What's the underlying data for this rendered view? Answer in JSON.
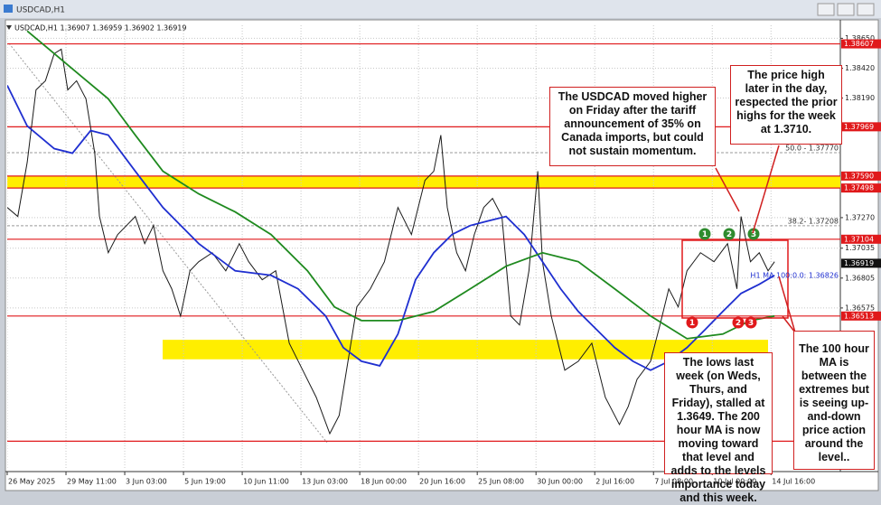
{
  "window": {
    "title": "USDCAD,H1"
  },
  "chart_data": {
    "type": "line",
    "header": "USDCAD,H1  1.36907 1.36959 1.36902 1.36919",
    "xlim": [
      0,
      14.18
    ],
    "xticks": [
      {
        "value": 0,
        "label": "26 May 2025"
      },
      {
        "value": 1,
        "label": "29 May 11:00"
      },
      {
        "value": 2,
        "label": "3 Jun 03:00"
      },
      {
        "value": 3,
        "label": "5 Jun 19:00"
      },
      {
        "value": 4,
        "label": "10 Jun 11:00"
      },
      {
        "value": 5,
        "label": "13 Jun 03:00"
      },
      {
        "value": 6,
        "label": "18 Jun 00:00"
      },
      {
        "value": 7,
        "label": "20 Jun 16:00"
      },
      {
        "value": 8,
        "label": "25 Jun 08:00"
      },
      {
        "value": 9,
        "label": "30 Jun 00:00"
      },
      {
        "value": 10,
        "label": "2 Jul 16:00"
      },
      {
        "value": 11,
        "label": "7 Jul 08:00"
      },
      {
        "value": 12,
        "label": "10 Jul 00:00"
      },
      {
        "value": 13,
        "label": "14 Jul 16:00"
      }
    ],
    "ylim": [
      1.3533,
      1.3875
    ],
    "yticks": [
      {
        "value": 1.3865,
        "label": "1.38650"
      },
      {
        "value": 1.3842,
        "label": "1.38420"
      },
      {
        "value": 1.3819,
        "label": "1.38190"
      },
      {
        "value": 1.3727,
        "label": "1.37270"
      },
      {
        "value": 1.37035,
        "label": "1.37035"
      },
      {
        "value": 1.36805,
        "label": "1.36805"
      },
      {
        "value": 1.36575,
        "label": "1.36575"
      }
    ],
    "grid": true,
    "series": [
      {
        "color": "#1a1a1a",
        "x": [
          0,
          0.18,
          0.34,
          0.49,
          0.65,
          0.8,
          0.92,
          1.03,
          1.18,
          1.34,
          1.49,
          1.57,
          1.72,
          1.88,
          2.03,
          2.18,
          2.34,
          2.49,
          2.65,
          2.8,
          2.95,
          3.11,
          3.26,
          3.49,
          3.72,
          3.95,
          4.11,
          4.34,
          4.57,
          4.8,
          5.03,
          5.26,
          5.49,
          5.65,
          5.8,
          5.95,
          6.18,
          6.42,
          6.65,
          6.88,
          7.11,
          7.26,
          7.38,
          7.49,
          7.65,
          7.8,
          7.95,
          8.11,
          8.26,
          8.42,
          8.57,
          8.72,
          8.88,
          9.03,
          9.11,
          9.26,
          9.49,
          9.72,
          9.95,
          10.18,
          10.42,
          10.57,
          10.72,
          10.95,
          11.11,
          11.26,
          11.42,
          11.57,
          11.8,
          12.03,
          12.26,
          12.42,
          12.49,
          12.65,
          12.8,
          12.95,
          13.06
        ],
        "values": [
          1.37348,
          1.37279,
          1.37696,
          1.38253,
          1.38323,
          1.38532,
          1.38566,
          1.38253,
          1.38323,
          1.38184,
          1.37766,
          1.37279,
          1.37,
          1.3714,
          1.37209,
          1.37279,
          1.3707,
          1.37209,
          1.36861,
          1.36722,
          1.36513,
          1.36861,
          1.36931,
          1.37,
          1.36861,
          1.3707,
          1.36931,
          1.36792,
          1.36861,
          1.36304,
          1.36096,
          1.35887,
          1.35608,
          1.35748,
          1.36165,
          1.36583,
          1.36722,
          1.36931,
          1.37348,
          1.3714,
          1.37557,
          1.37627,
          1.37905,
          1.37348,
          1.37,
          1.36861,
          1.3714,
          1.37348,
          1.37418,
          1.37279,
          1.36513,
          1.36444,
          1.36861,
          1.37627,
          1.36931,
          1.36513,
          1.36096,
          1.36165,
          1.36304,
          1.35887,
          1.35678,
          1.35817,
          1.36026,
          1.36165,
          1.36444,
          1.36722,
          1.36583,
          1.36861,
          1.37,
          1.36931,
          1.3707,
          1.36722,
          1.37279,
          1.36931,
          1.37,
          1.36861,
          1.36931
        ]
      },
      {
        "color": "#1f2fd0",
        "x": [
          0,
          0.34,
          0.8,
          1.11,
          1.42,
          1.72,
          2.18,
          2.65,
          3.26,
          3.88,
          4.49,
          4.95,
          5.42,
          5.72,
          6.03,
          6.34,
          6.65,
          6.95,
          7.26,
          7.57,
          7.88,
          8.18,
          8.49,
          8.8,
          9.11,
          9.42,
          9.72,
          10.03,
          10.34,
          10.65,
          10.95,
          11.26,
          11.57,
          11.88,
          12.18,
          12.49,
          12.8,
          13.06
        ],
        "values": [
          1.38288,
          1.37975,
          1.37801,
          1.37766,
          1.3794,
          1.37905,
          1.37627,
          1.37348,
          1.3707,
          1.36861,
          1.36826,
          1.36722,
          1.36513,
          1.3627,
          1.36165,
          1.3613,
          1.36374,
          1.36792,
          1.37,
          1.3714,
          1.37209,
          1.37244,
          1.37279,
          1.3714,
          1.36931,
          1.36722,
          1.36548,
          1.36409,
          1.3627,
          1.36165,
          1.36096,
          1.36165,
          1.3627,
          1.36409,
          1.36548,
          1.36687,
          1.36757,
          1.36826
        ]
      },
      {
        "color": "#1f8a1f",
        "x": [
          0.34,
          0.8,
          1.26,
          1.72,
          2.18,
          2.65,
          3.26,
          3.88,
          4.49,
          5.11,
          5.57,
          6.03,
          6.65,
          7.26,
          7.88,
          8.49,
          9.11,
          9.72,
          10.34,
          10.95,
          11.57,
          12.18,
          12.65,
          13.06
        ],
        "values": [
          1.38706,
          1.38532,
          1.38358,
          1.38184,
          1.37905,
          1.37627,
          1.37453,
          1.37314,
          1.3714,
          1.36861,
          1.36583,
          1.36478,
          1.36478,
          1.36548,
          1.36722,
          1.36896,
          1.37,
          1.36931,
          1.36722,
          1.36513,
          1.36339,
          1.36374,
          1.36478,
          1.36513
        ]
      }
    ],
    "levels": [
      {
        "value": 1.38607,
        "label": "1.38607"
      },
      {
        "value": 1.37969,
        "label": "1.37969"
      },
      {
        "value": 1.3759,
        "label": "1.37590"
      },
      {
        "value": 1.37498,
        "label": "1.37498"
      },
      {
        "value": 1.37104,
        "label": "1.37104"
      },
      {
        "value": 1.36513,
        "label": "1.36513"
      },
      {
        "value": 1.3555,
        "label": null
      }
    ],
    "level_color": "#e0191b",
    "zones": [
      {
        "from": 1.3759,
        "to": 1.37498
      },
      {
        "from": 1.3633,
        "to": 1.3618
      }
    ],
    "zone_color": "#ffee00",
    "current_price": {
      "value": 1.36919,
      "label": "1.36919"
    },
    "fib_levels": [
      {
        "value": 1.3777,
        "label": "50.0 - 1.37770"
      },
      {
        "value": 1.37208,
        "label": "38.2- 1.37208"
      }
    ],
    "ma_label": {
      "value": 1.36826,
      "label": "H1 MA 100:0.0: 1.36826"
    },
    "markers": [
      {
        "label": "1",
        "color": "#2e8b2e"
      },
      {
        "label": "2",
        "color": "#2e8b2e"
      },
      {
        "label": "3",
        "color": "#2e8b2e"
      },
      {
        "label": "1",
        "color": "#e0191b"
      },
      {
        "label": "2",
        "color": "#e0191b"
      },
      {
        "label": "3",
        "color": "#e0191b"
      }
    ],
    "annotations": [
      {
        "text": "The USDCAD moved higher on Friday after the tariff announcement of 35% on Canada imports, but could not sustain momentum."
      },
      {
        "text": "The price high later in the day, respected the prior highs for the week at 1.3710."
      },
      {
        "text": "The lows last week (on Weds, Thurs, and Friday), stalled at 1.3649. The 200 hour MA is now moving toward that level and adds to the levels importance today and this week."
      },
      {
        "text": "The 100 hour MA is between the extremes but is seeing up-and-down price action around the level.."
      }
    ]
  }
}
